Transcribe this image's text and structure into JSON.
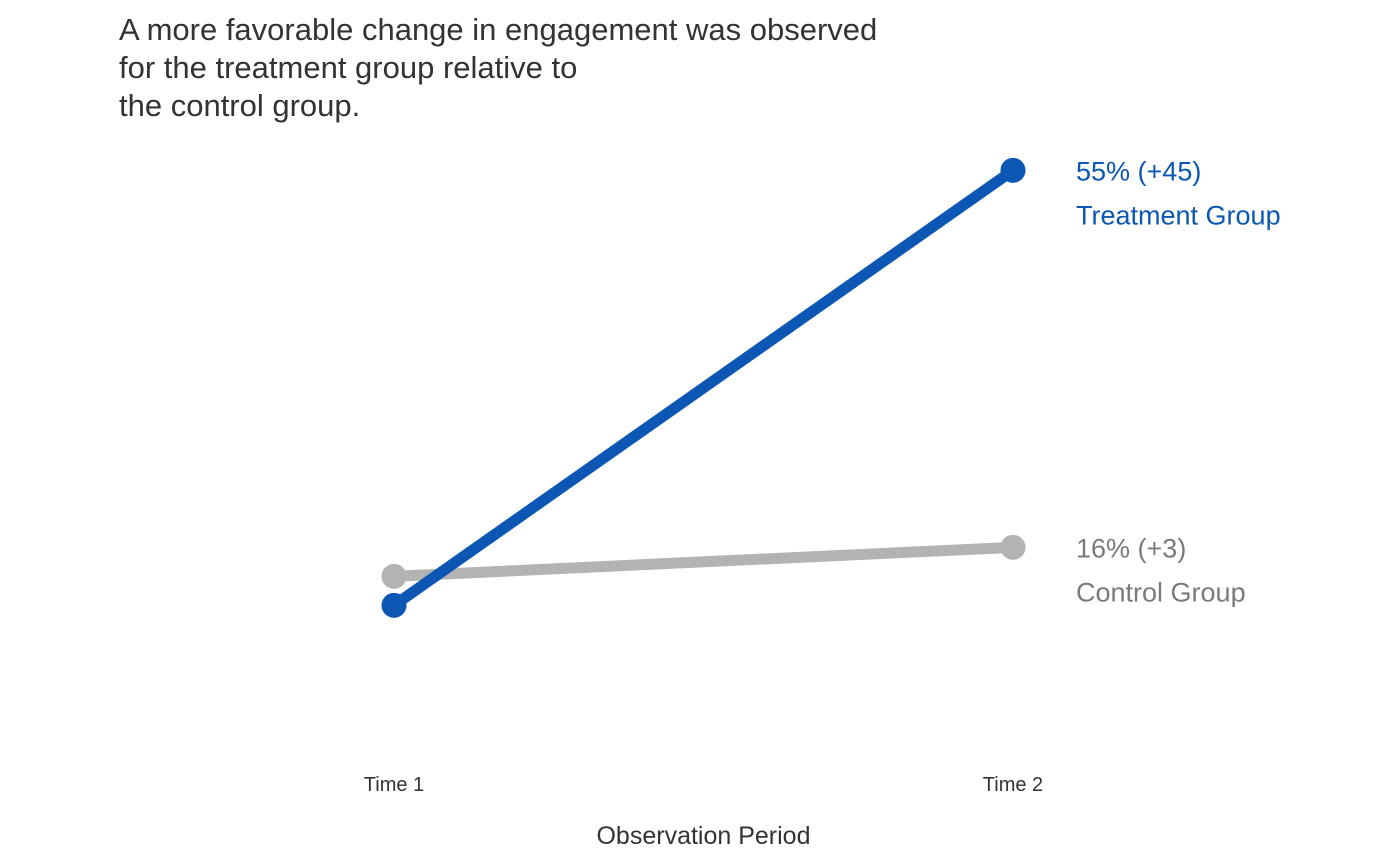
{
  "title_lines": [
    "A more favorable change in engagement was observed",
    "for the treatment group relative to",
    "the control group."
  ],
  "chart_data": {
    "type": "line",
    "title": "A more favorable change in engagement was observed for the treatment group relative to the control group.",
    "xlabel": "Observation Period",
    "ylabel": "",
    "categories": [
      "Time 1",
      "Time 2"
    ],
    "ylim": [
      0,
      60
    ],
    "grid": false,
    "legend": "none (direct end labels on the right)",
    "series": [
      {
        "name": "Control Group",
        "values": [
          13,
          16
        ],
        "color": "#b3b3b3",
        "end_value_label": "16% (+3)"
      },
      {
        "name": "Treatment Group",
        "values": [
          10,
          55
        ],
        "color": "#0b57b3",
        "end_value_label": "55% (+45)"
      }
    ]
  }
}
